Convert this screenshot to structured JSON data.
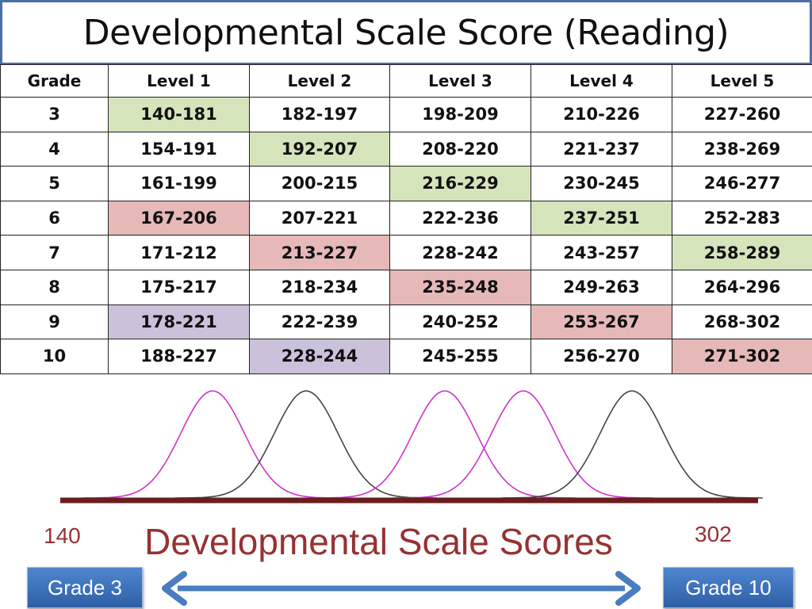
{
  "title": "Developmental Scale Score (Reading)",
  "table": {
    "headers": [
      "Grade",
      "Level 1",
      "Level 2",
      "Level 3",
      "Level 4",
      "Level 5"
    ],
    "rows": [
      {
        "grade": "3",
        "cells": [
          "140-181",
          "182-197",
          "198-209",
          "210-226",
          "227-260"
        ]
      },
      {
        "grade": "4",
        "cells": [
          "154-191",
          "192-207",
          "208-220",
          "221-237",
          "238-269"
        ]
      },
      {
        "grade": "5",
        "cells": [
          "161-199",
          "200-215",
          "216-229",
          "230-245",
          "246-277"
        ]
      },
      {
        "grade": "6",
        "cells": [
          "167-206",
          "207-221",
          "222-236",
          "237-251",
          "252-283"
        ]
      },
      {
        "grade": "7",
        "cells": [
          "171-212",
          "213-227",
          "228-242",
          "243-257",
          "258-289"
        ]
      },
      {
        "grade": "8",
        "cells": [
          "175-217",
          "218-234",
          "235-248",
          "249-263",
          "264-296"
        ]
      },
      {
        "grade": "9",
        "cells": [
          "178-221",
          "222-239",
          "240-252",
          "253-267",
          "268-302"
        ]
      },
      {
        "grade": "10",
        "cells": [
          "188-227",
          "228-244",
          "245-255",
          "256-270",
          "271-302"
        ]
      }
    ],
    "highlights": [
      {
        "row": 0,
        "col": 0,
        "color": "green"
      },
      {
        "row": 1,
        "col": 1,
        "color": "green"
      },
      {
        "row": 2,
        "col": 2,
        "color": "green"
      },
      {
        "row": 3,
        "col": 3,
        "color": "green"
      },
      {
        "row": 4,
        "col": 4,
        "color": "green"
      },
      {
        "row": 3,
        "col": 0,
        "color": "red"
      },
      {
        "row": 4,
        "col": 1,
        "color": "red"
      },
      {
        "row": 5,
        "col": 2,
        "color": "red"
      },
      {
        "row": 6,
        "col": 3,
        "color": "red"
      },
      {
        "row": 7,
        "col": 4,
        "color": "red"
      },
      {
        "row": 6,
        "col": 0,
        "color": "purple"
      },
      {
        "row": 7,
        "col": 1,
        "color": "purple"
      }
    ]
  },
  "colors": {
    "green": "#d6e4bc",
    "red": "#e6b9b8",
    "purple": "#ccc1da",
    "curve_magenta": "#cc33cc",
    "curve_gray": "#444444",
    "axis_line": "#6b1e1e",
    "label_red": "#963232",
    "button_blue": "#3a6fb8",
    "arrow_blue": "#4a7cc0"
  },
  "curves": [
    {
      "color": "magenta",
      "center": 165
    },
    {
      "color": "gray",
      "center": 190
    },
    {
      "color": "magenta",
      "center": 227
    },
    {
      "color": "magenta",
      "center": 248
    },
    {
      "color": "gray",
      "center": 277
    }
  ],
  "scale": {
    "min_label": "140",
    "max_label": "302",
    "axis_title": "Developmental Scale Scores"
  },
  "buttons": {
    "left": "Grade 3",
    "right": "Grade 10"
  }
}
